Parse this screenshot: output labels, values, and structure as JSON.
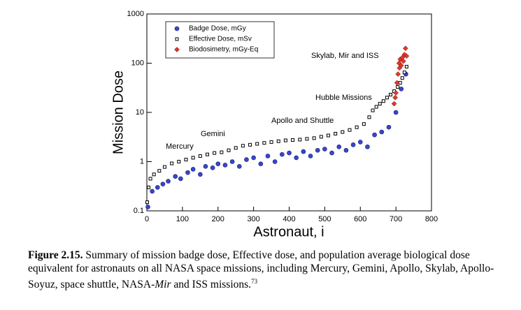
{
  "chart_data": {
    "type": "scatter",
    "xlabel": "Astronaut, i",
    "ylabel": "Mission Dose",
    "xlim": [
      0,
      800
    ],
    "xticks": [
      0,
      100,
      200,
      300,
      400,
      500,
      600,
      700,
      800
    ],
    "ylim": [
      0.1,
      1000
    ],
    "yticks": [
      0.1,
      1,
      10,
      100,
      1000
    ],
    "log_y": true,
    "legend": "upper left",
    "annotations": [
      "Mercury",
      "Gemini",
      "Apollo and Shuttle",
      "Hubble Missions",
      "Skylab, Mir and ISS"
    ],
    "series": [
      {
        "name": "Badge Dose, mGy",
        "color": "#3547d4",
        "marker": "circle",
        "x": [
          3,
          15,
          30,
          45,
          60,
          80,
          95,
          115,
          130,
          150,
          165,
          185,
          200,
          220,
          240,
          260,
          280,
          300,
          320,
          340,
          360,
          380,
          400,
          420,
          440,
          460,
          480,
          500,
          520,
          540,
          560,
          580,
          600,
          620,
          640,
          660,
          680,
          700,
          715,
          728
        ],
        "values": [
          0.12,
          0.25,
          0.3,
          0.35,
          0.4,
          0.5,
          0.45,
          0.6,
          0.7,
          0.55,
          0.8,
          0.75,
          0.9,
          0.85,
          1.0,
          0.8,
          1.1,
          1.2,
          0.9,
          1.3,
          1.0,
          1.4,
          1.5,
          1.2,
          1.6,
          1.3,
          1.7,
          1.8,
          1.5,
          2.0,
          1.7,
          2.2,
          2.5,
          2.0,
          3.5,
          4,
          5,
          10,
          30,
          60
        ]
      },
      {
        "name": "Effective Dose, mSv",
        "color": "#000000",
        "marker": "square",
        "x": [
          1,
          5,
          10,
          20,
          35,
          50,
          70,
          90,
          110,
          130,
          150,
          170,
          190,
          210,
          230,
          250,
          270,
          290,
          310,
          330,
          350,
          370,
          390,
          410,
          430,
          450,
          470,
          490,
          510,
          530,
          550,
          570,
          590,
          610,
          625,
          635,
          645,
          655,
          665,
          675,
          685,
          695,
          705,
          712,
          718,
          724,
          730
        ],
        "values": [
          0.15,
          0.3,
          0.45,
          0.55,
          0.65,
          0.78,
          0.92,
          1.0,
          1.1,
          1.2,
          1.3,
          1.4,
          1.5,
          1.55,
          1.7,
          1.9,
          2.1,
          2.2,
          2.3,
          2.4,
          2.5,
          2.6,
          2.7,
          2.75,
          2.8,
          2.9,
          3.0,
          3.2,
          3.4,
          3.7,
          4.0,
          4.4,
          5.0,
          5.8,
          8,
          11,
          13,
          15,
          17,
          20,
          23,
          27,
          33,
          40,
          50,
          65,
          85
        ]
      },
      {
        "name": "Biodosimetry, mGy-Eq",
        "color": "#e0392a",
        "marker": "diamond",
        "x": [
          695,
          700,
          703,
          706,
          709,
          712,
          715,
          718,
          721,
          724,
          727,
          730,
          698,
          710
        ],
        "values": [
          15,
          25,
          40,
          60,
          100,
          120,
          90,
          130,
          110,
          150,
          200,
          140,
          20,
          80
        ]
      }
    ]
  },
  "caption": {
    "label": "Figure 2.15.",
    "text": " Summary of mission badge dose, Effective dose, and population average biological dose equivalent for astronauts on all NASA space missions, including Mercury, Gemini, Apollo, Skylab, Apollo-Soyuz, space shuttle, NASA-",
    "italic": "Mir",
    "text_end": " and ISS missions.",
    "reference": "73"
  }
}
